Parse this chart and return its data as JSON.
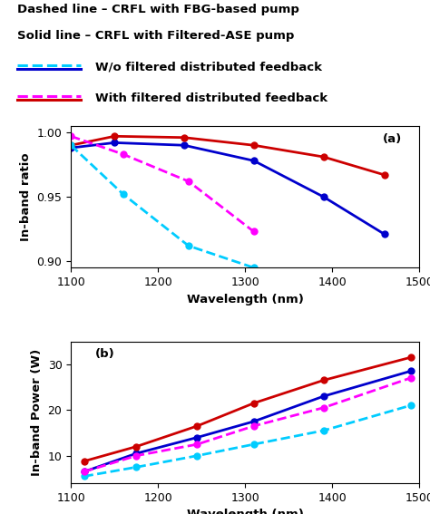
{
  "title_line1": "Dashed line – CRFL with FBG-based pump",
  "title_line2": "Solid line – CRFL with Filtered-ASE pump",
  "legend_entries": [
    "W/o filtered distributed feedback",
    "With filtered distributed feedback"
  ],
  "legend_colors_dashed": [
    "#00CCFF",
    "#FF00FF"
  ],
  "legend_colors_solid": [
    "#0000CC",
    "#CC0000"
  ],
  "plot_a": {
    "label": "(a)",
    "xlabel": "Wavelength (nm)",
    "ylabel": "In-band ratio",
    "xlim": [
      1100,
      1500
    ],
    "ylim": [
      0.895,
      1.005
    ],
    "yticks": [
      0.9,
      0.95,
      1
    ],
    "xticks": [
      1100,
      1200,
      1300,
      1400,
      1500
    ],
    "solid_blue": {
      "x": [
        1100,
        1150,
        1230,
        1310,
        1390,
        1460
      ],
      "y": [
        0.988,
        0.992,
        0.99,
        0.978,
        0.95,
        0.921
      ],
      "color": "#0000CC",
      "linestyle": "solid",
      "marker": "o"
    },
    "solid_red": {
      "x": [
        1100,
        1150,
        1230,
        1310,
        1390,
        1460
      ],
      "y": [
        0.99,
        0.997,
        0.996,
        0.99,
        0.981,
        0.967
      ],
      "color": "#CC0000",
      "linestyle": "solid",
      "marker": "o"
    },
    "dashed_cyan": {
      "x": [
        1100,
        1160,
        1235,
        1310
      ],
      "y": [
        0.99,
        0.952,
        0.912,
        0.895
      ],
      "color": "#00CCFF",
      "linestyle": "dashed",
      "marker": "o"
    },
    "dashed_magenta": {
      "x": [
        1100,
        1160,
        1235,
        1310
      ],
      "y": [
        0.997,
        0.983,
        0.962,
        0.923
      ],
      "color": "#FF00FF",
      "linestyle": "dashed",
      "marker": "o"
    }
  },
  "plot_b": {
    "label": "(b)",
    "xlabel": "Wavelength (nm)",
    "ylabel": "In-band Power (W)",
    "xlim": [
      1100,
      1500
    ],
    "ylim": [
      4,
      35
    ],
    "yticks": [
      10,
      20,
      30
    ],
    "xticks": [
      1100,
      1200,
      1300,
      1400,
      1500
    ],
    "solid_blue": {
      "x": [
        1115,
        1175,
        1245,
        1310,
        1390,
        1490
      ],
      "y": [
        6.5,
        10.5,
        14.0,
        17.5,
        23.0,
        28.5
      ],
      "color": "#0000CC",
      "linestyle": "solid",
      "marker": "o"
    },
    "solid_red": {
      "x": [
        1115,
        1175,
        1245,
        1310,
        1390,
        1490
      ],
      "y": [
        8.8,
        12.0,
        16.5,
        21.5,
        26.5,
        31.5
      ],
      "color": "#CC0000",
      "linestyle": "solid",
      "marker": "o"
    },
    "dashed_cyan": {
      "x": [
        1115,
        1175,
        1245,
        1310,
        1390,
        1490
      ],
      "y": [
        5.5,
        7.5,
        10.0,
        12.5,
        15.5,
        21.0
      ],
      "color": "#00CCFF",
      "linestyle": "dashed",
      "marker": "o"
    },
    "dashed_magenta": {
      "x": [
        1115,
        1175,
        1245,
        1310,
        1390,
        1490
      ],
      "y": [
        6.5,
        10.0,
        12.5,
        16.5,
        20.5,
        27.0
      ],
      "color": "#FF00FF",
      "linestyle": "dashed",
      "marker": "o"
    }
  },
  "background_color": "#FFFFFF",
  "title_fontsize": 9.5,
  "axis_label_fontsize": 9.5,
  "tick_fontsize": 9,
  "legend_fontsize": 9.5
}
